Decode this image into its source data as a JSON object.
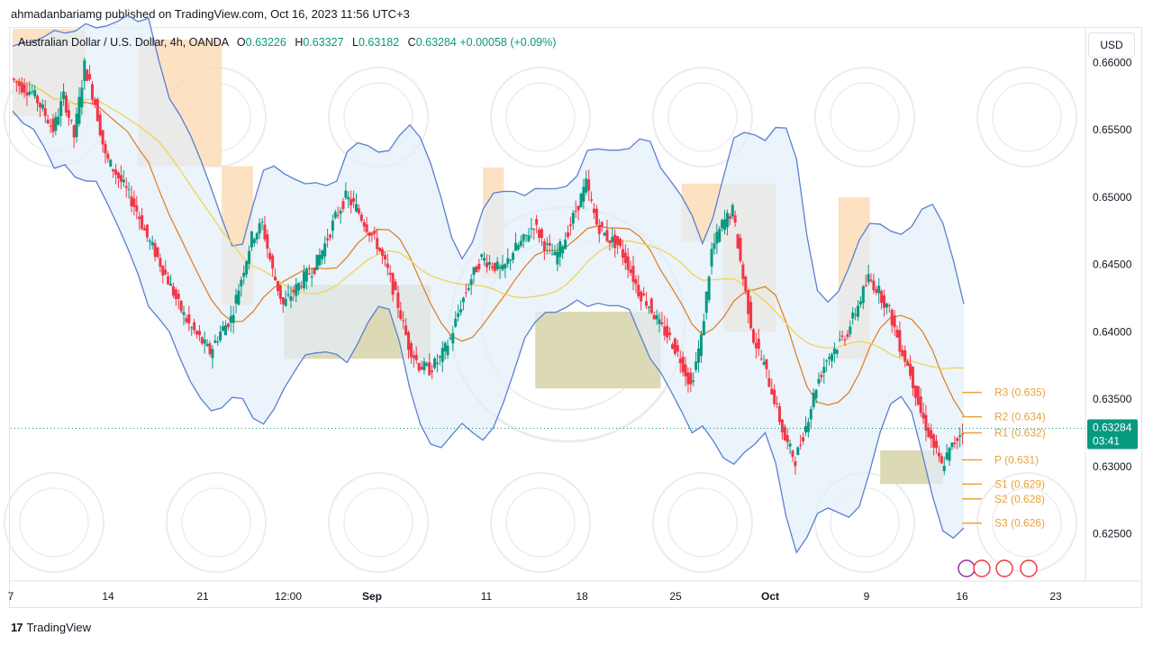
{
  "header": {
    "published": "ahmadanbariamg published on TradingView.com, Oct 16, 2023 11:56 UTC+3"
  },
  "legend": {
    "symbol": "Australian Dollar / U.S. Dollar, 4h, OANDA",
    "o_label": "O",
    "o_value": "0.63226",
    "h_label": "H",
    "h_value": "0.63327",
    "l_label": "L",
    "l_value": "0.63182",
    "c_label": "C",
    "c_value": "0.63284",
    "change": "+0.00058 (+0.09%)"
  },
  "currency_button": "USD",
  "price_tag": {
    "price": "0.63284",
    "countdown": "03:41",
    "color": "#089981"
  },
  "footer": {
    "logo": "17",
    "brand": "TradingView"
  },
  "colors": {
    "up": "#089981",
    "down": "#f23645",
    "band": "#5b7fd1",
    "band_fill": "#e3eefa",
    "ema_fast": "#e07b1a",
    "ema_slow": "#f2d24b",
    "supply": "#fbd9b3",
    "demand": "#d6d2a8",
    "pivot": "#e8a33b"
  },
  "chart_data": {
    "type": "candlestick",
    "title": "Australian Dollar / U.S. Dollar, 4h, OANDA",
    "y_ticks": [
      "0.66000",
      "0.65500",
      "0.65000",
      "0.64500",
      "0.64000",
      "0.63500",
      "0.63000",
      "0.62500"
    ],
    "ylim": [
      0.6215,
      0.6625
    ],
    "x_ticks": [
      "7",
      "14",
      "21",
      "12:00",
      "Sep",
      "11",
      "18",
      "25",
      "Oct",
      "9",
      "16",
      "23"
    ],
    "bold_x_ticks": [
      "Sep",
      "Oct"
    ],
    "last_price": 0.63284,
    "pivot_levels": [
      {
        "label": "R3 (0.635)",
        "value": 0.6355
      },
      {
        "label": "R2 (0.634)",
        "value": 0.6337
      },
      {
        "label": "R1 (0.632)",
        "value": 0.6325
      },
      {
        "label": "P (0.631)",
        "value": 0.6305
      },
      {
        "label": "S1 (0.629)",
        "value": 0.6287
      },
      {
        "label": "S2 (0.628)",
        "value": 0.6276
      },
      {
        "label": "S3 (0.626)",
        "value": 0.6258
      }
    ],
    "close_path": [
      0.6588,
      0.6582,
      0.6578,
      0.6565,
      0.655,
      0.6575,
      0.6545,
      0.6598,
      0.657,
      0.653,
      0.6518,
      0.6505,
      0.649,
      0.647,
      0.6455,
      0.6438,
      0.642,
      0.6405,
      0.6395,
      0.6385,
      0.64,
      0.641,
      0.644,
      0.647,
      0.648,
      0.6445,
      0.642,
      0.643,
      0.644,
      0.6448,
      0.6465,
      0.6485,
      0.65,
      0.6492,
      0.6478,
      0.6465,
      0.6445,
      0.642,
      0.639,
      0.6375,
      0.6372,
      0.638,
      0.6395,
      0.642,
      0.644,
      0.6455,
      0.645,
      0.6445,
      0.646,
      0.6468,
      0.648,
      0.6465,
      0.6455,
      0.647,
      0.649,
      0.651,
      0.648,
      0.647,
      0.6465,
      0.645,
      0.643,
      0.642,
      0.6405,
      0.6395,
      0.638,
      0.636,
      0.6395,
      0.646,
      0.648,
      0.649,
      0.644,
      0.6395,
      0.6375,
      0.635,
      0.632,
      0.6305,
      0.633,
      0.636,
      0.638,
      0.639,
      0.64,
      0.642,
      0.644,
      0.643,
      0.6415,
      0.639,
      0.637,
      0.634,
      0.632,
      0.63,
      0.6315,
      0.6328
    ],
    "supply_zones": [
      {
        "from": 0,
        "to": 7,
        "top": 0.6625,
        "bottom": 0.656
      },
      {
        "from": 12,
        "to": 20,
        "top": 0.6617,
        "bottom": 0.6523
      },
      {
        "from": 20,
        "to": 23,
        "top": 0.6523,
        "bottom": 0.642
      },
      {
        "from": 45,
        "to": 47,
        "top": 0.6522,
        "bottom": 0.644
      },
      {
        "from": 64,
        "to": 73,
        "top": 0.651,
        "bottom": 0.6467
      },
      {
        "from": 68,
        "to": 73,
        "top": 0.6467,
        "bottom": 0.64
      },
      {
        "from": 79,
        "to": 82,
        "top": 0.65,
        "bottom": 0.638
      }
    ],
    "demand_zones": [
      {
        "from": 26,
        "to": 40,
        "top": 0.6435,
        "bottom": 0.6383
      },
      {
        "from": 26,
        "to": 40,
        "top": 0.6383,
        "bottom": 0.638
      },
      {
        "from": 50,
        "to": 62,
        "top": 0.6415,
        "bottom": 0.6358
      },
      {
        "from": 83,
        "to": 89,
        "top": 0.6312,
        "bottom": 0.6287
      }
    ]
  }
}
